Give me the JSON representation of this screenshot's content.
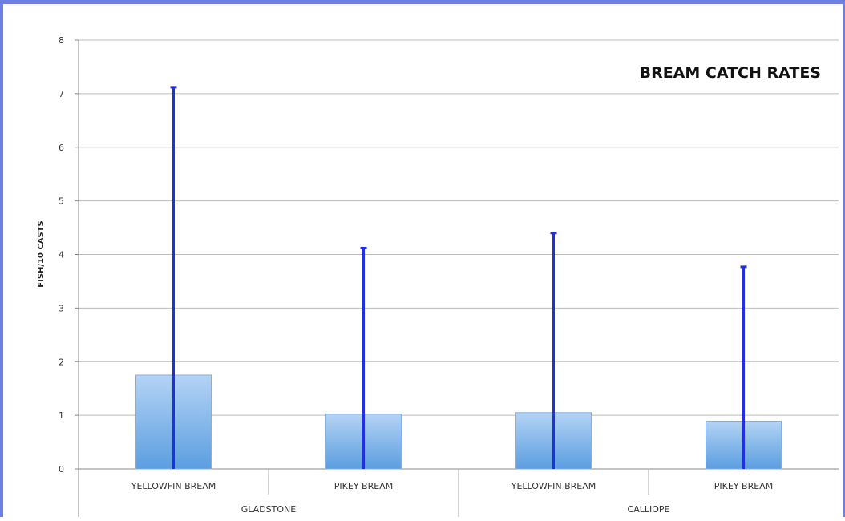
{
  "chart_data": {
    "type": "bar",
    "title": "BREAM CATCH RATES",
    "xlabel": "",
    "ylabel": "FISH/10 CASTS",
    "ylim": [
      0,
      8
    ],
    "yticks": [
      "0",
      "1",
      "2",
      "3",
      "4",
      "5",
      "6",
      "7",
      "8"
    ],
    "categories": [
      "YELLOWFIN BREAM",
      "PIKEY BREAM",
      "YELLOWFIN BREAM",
      "PIKEY BREAM"
    ],
    "groups": [
      {
        "label": "GLADSTONE",
        "span": 2
      },
      {
        "label": "CALLIOPE",
        "span": 2
      }
    ],
    "values": [
      1.75,
      1.02,
      1.05,
      0.89
    ],
    "error_upper": [
      7.12,
      4.12,
      4.4,
      3.77
    ],
    "grid": true,
    "legend": "none",
    "colors": {
      "bar_top": "#b4d3f5",
      "bar_bottom": "#5b9ee0",
      "bar_edge": "#7fb0e6",
      "error": "#1f2fe6",
      "grid": "#bcbcbc",
      "frame": "#6f7fe0"
    }
  }
}
